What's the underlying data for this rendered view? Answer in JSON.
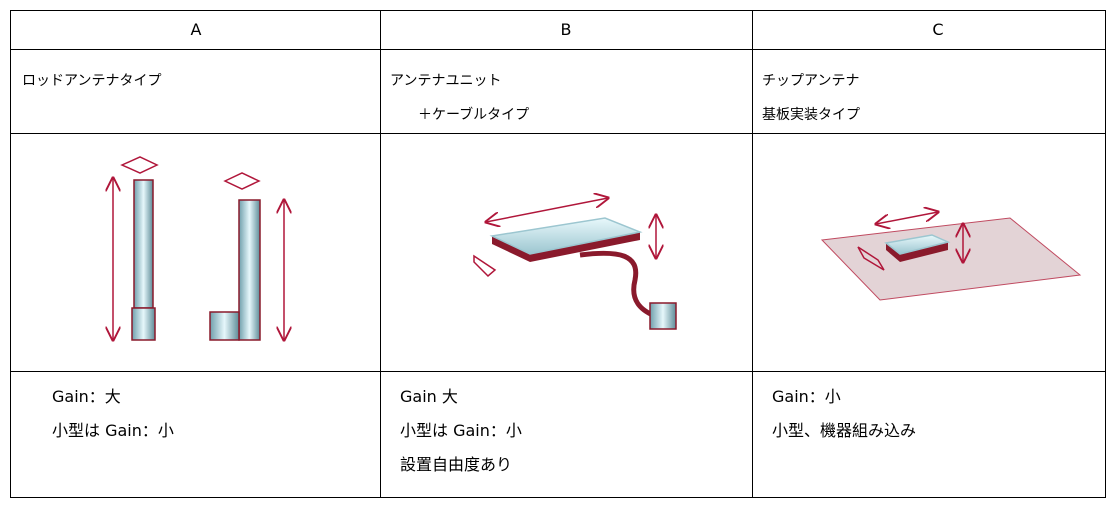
{
  "table": {
    "header": [
      "A",
      "B",
      "C"
    ],
    "rows": [
      [
        [
          "ロッドアンテナタイプ"
        ],
        [
          "アンテナユニット",
          "＋ケーブルタイプ"
        ],
        [
          "チップアンテナ",
          "基板実装タイプ"
        ]
      ],
      [
        [
          "Gain：大",
          "小型は Gain：小"
        ],
        [
          "Gain 大",
          "小型は Gain：小",
          "設置自由度あり"
        ],
        [
          "Gain：小",
          "小型、機器組み込み"
        ]
      ]
    ]
  }
}
